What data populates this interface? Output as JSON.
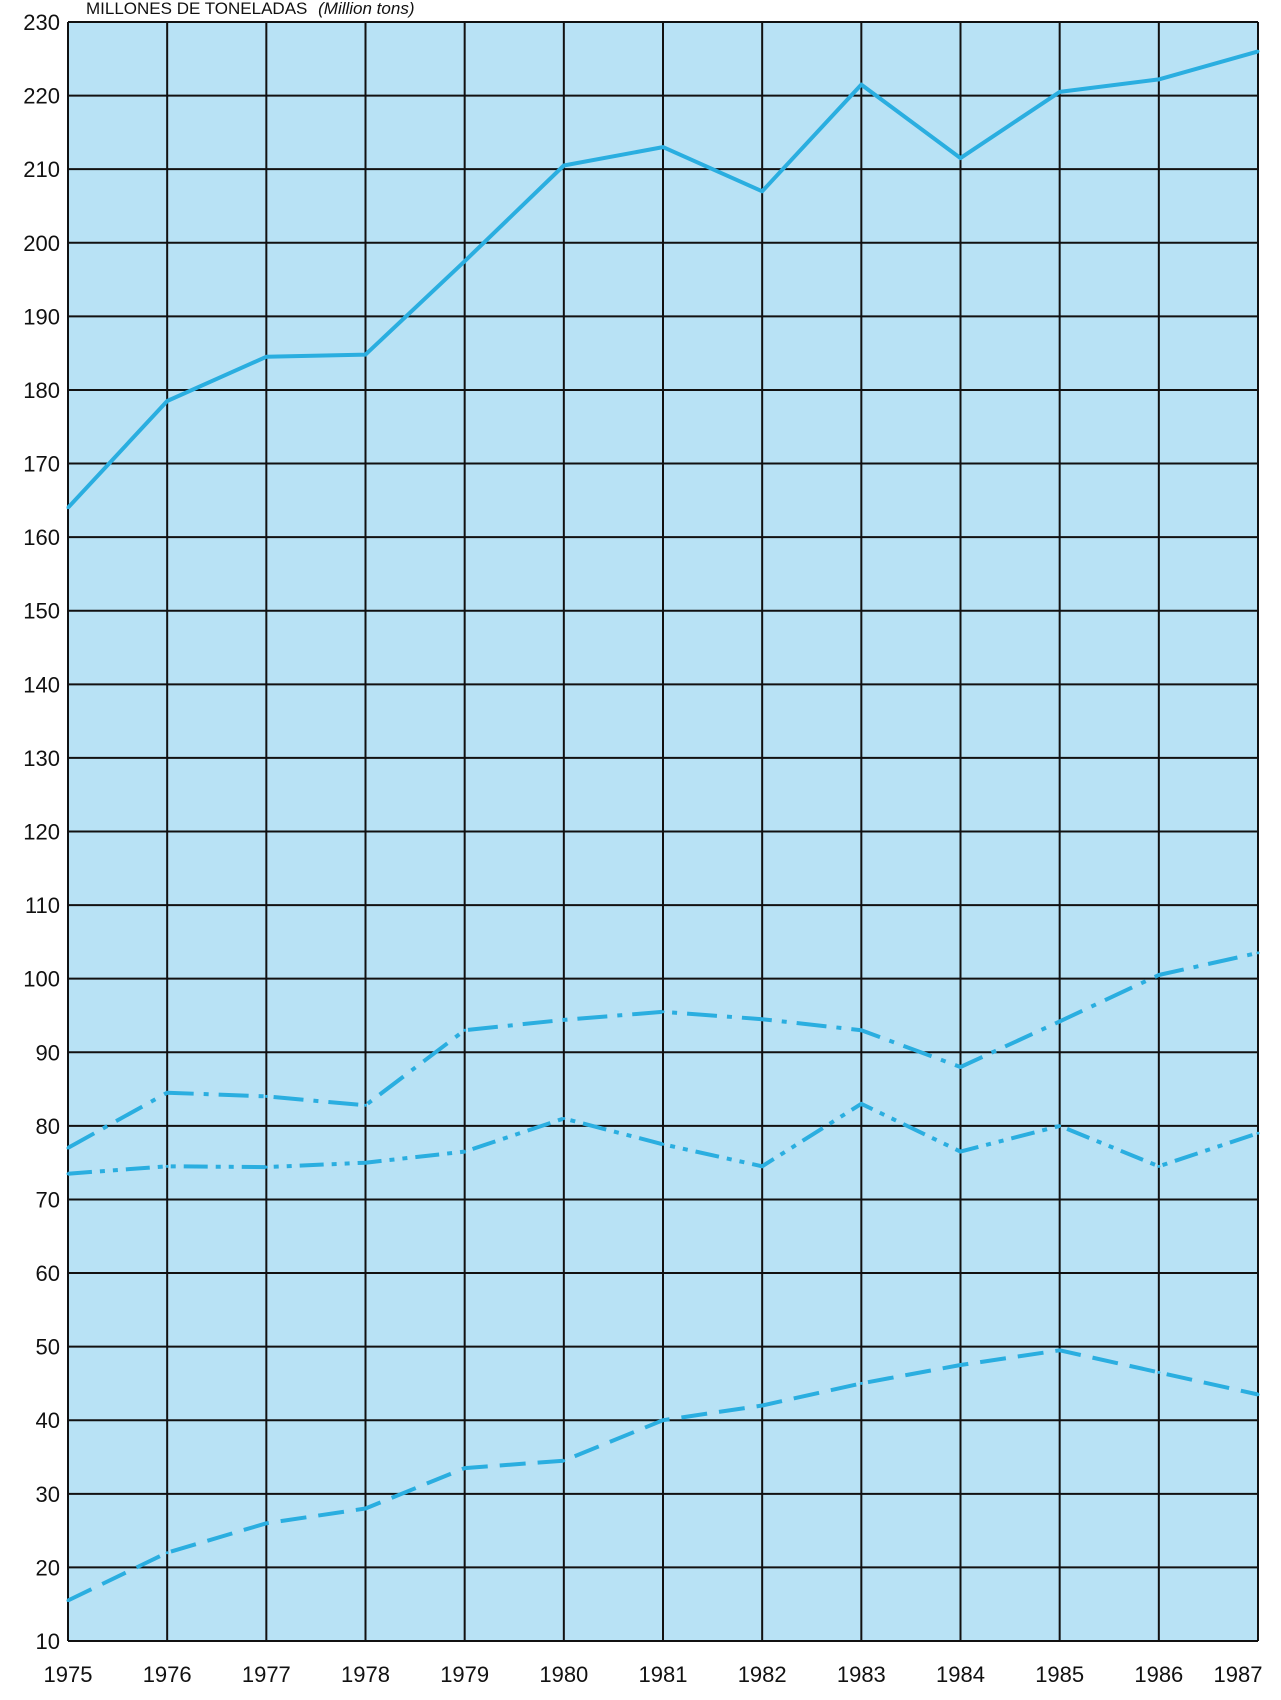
{
  "chart_data": {
    "type": "line",
    "title": "",
    "ylabel": "MILLONES DE TONELADAS",
    "ylabel_sub": "(Million tons)",
    "xlabel": "",
    "x": [
      "1975",
      "1976",
      "1977",
      "1978",
      "1979",
      "1980",
      "1981",
      "1982",
      "1983",
      "1984",
      "1985",
      "1986",
      "1987"
    ],
    "xticks": [
      "1975",
      "1976",
      "1977",
      "1978",
      "1979",
      "1980",
      "1981",
      "1982",
      "1983",
      "1984",
      "1985",
      "1986",
      "1987"
    ],
    "yticks": [
      10,
      20,
      30,
      40,
      50,
      60,
      70,
      80,
      90,
      100,
      110,
      120,
      130,
      140,
      150,
      160,
      170,
      180,
      190,
      200,
      210,
      220,
      230
    ],
    "ylim": [
      10,
      230
    ],
    "grid": true,
    "legend": "none",
    "colors": {
      "plot_background": "#b8e2f5",
      "grid": "#111111",
      "series": "#2aaee0"
    },
    "series": [
      {
        "style": "solid",
        "values": [
          164,
          178.5,
          184.5,
          184.8,
          197.5,
          210.5,
          213,
          207,
          221.5,
          211.5,
          220.5,
          222.2,
          226
        ]
      },
      {
        "style": "dash-dot",
        "values": [
          77,
          84.5,
          84,
          82.8,
          93,
          94.4,
          95.5,
          94.5,
          93,
          88,
          94.2,
          100.5,
          103.5
        ]
      },
      {
        "style": "dash-dot-dot",
        "values": [
          73.5,
          74.5,
          74.4,
          75,
          76.5,
          81,
          77.5,
          74.5,
          83,
          76.5,
          80,
          74.5,
          79
        ]
      },
      {
        "style": "dashed",
        "values": [
          15.5,
          22,
          26,
          28,
          33.5,
          34.5,
          40,
          42,
          45,
          47.5,
          49.5,
          46.5,
          43.5
        ]
      }
    ]
  }
}
